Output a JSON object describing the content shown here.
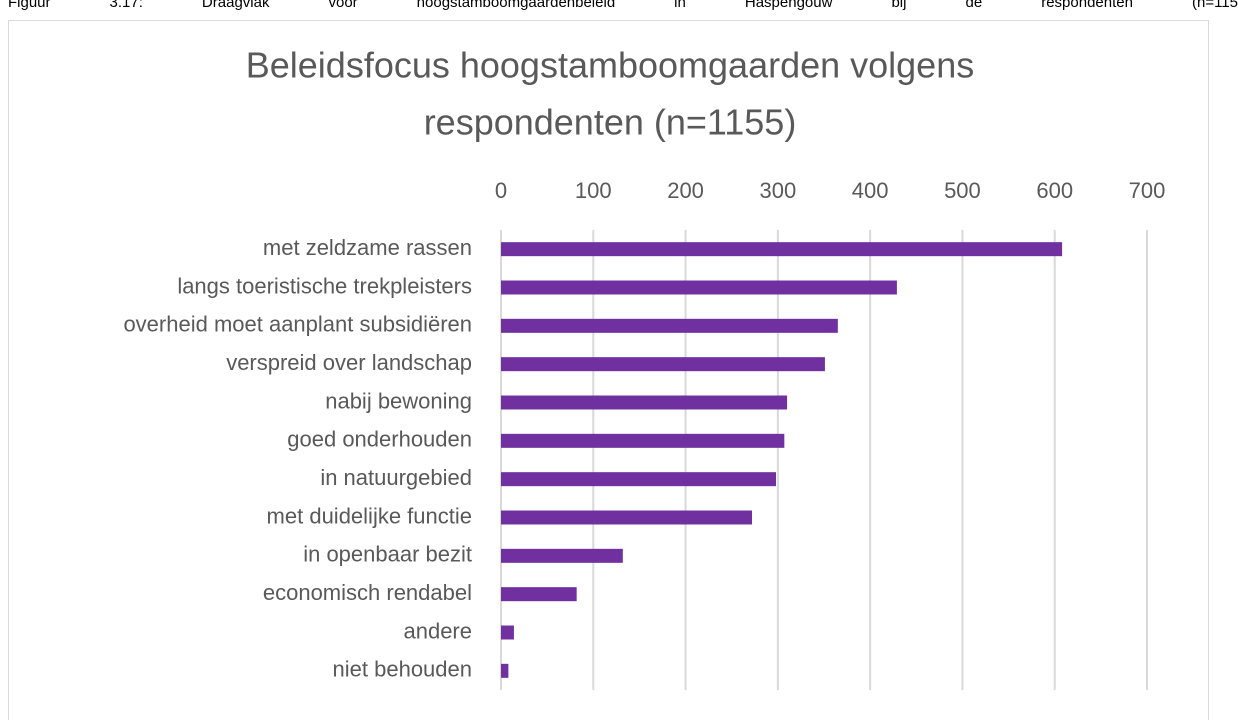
{
  "caption": "Figuur 3.17: Draagvlak voor hoogstamboomgaardenbeleid in Haspengouw bij de respondenten (n=115",
  "chart_data": {
    "type": "bar",
    "orientation": "horizontal",
    "title": "Beleidsfocus hoogstamboomgaarden volgens respondenten (n=1155)",
    "categories": [
      "met zeldzame rassen",
      "langs toeristische trekpleisters",
      "overheid moet aanplant subsidiëren",
      "verspreid over landschap",
      "nabij bewoning",
      "goed onderhouden",
      "in natuurgebied",
      "met duidelijke functie",
      "in openbaar bezit",
      "economisch rendabel",
      "andere",
      "niet behouden"
    ],
    "values": [
      608,
      429,
      365,
      351,
      310,
      307,
      298,
      272,
      132,
      82,
      14,
      8
    ],
    "color": "#7030a0",
    "xlim": [
      0,
      700
    ],
    "xticks": [
      0,
      100,
      200,
      300,
      400,
      500,
      600,
      700
    ],
    "grid": true
  }
}
